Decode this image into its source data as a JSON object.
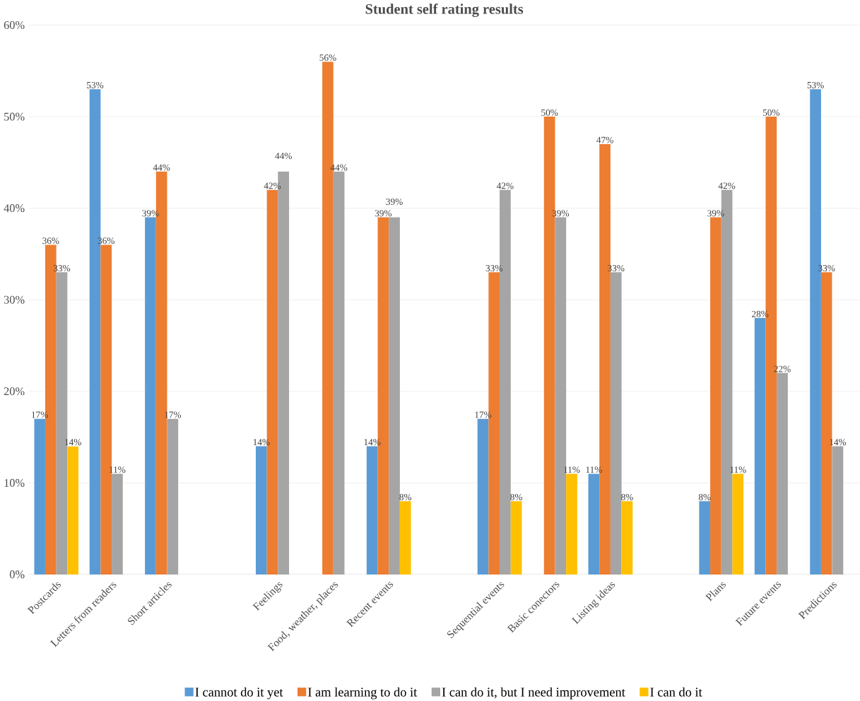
{
  "chart_data": {
    "type": "bar",
    "title": "Student self rating results",
    "categories": [
      "Postcards",
      "Letters from readers",
      "Short articles",
      null,
      "Feelings",
      "Food, weather, places",
      "Recent events",
      null,
      "Sequential events",
      "Basic conectors",
      "Listing ideas",
      null,
      "Plans",
      "Future events",
      "Predictions"
    ],
    "series": [
      {
        "name": "I cannot do it yet",
        "color": "#5b9bd5",
        "values": [
          17,
          53,
          39,
          null,
          14,
          null,
          14,
          null,
          17,
          null,
          11,
          null,
          8,
          28,
          53
        ],
        "value_labels": [
          "17%",
          "53%",
          "39%",
          null,
          "14%",
          null,
          "14%",
          null,
          "17%",
          null,
          "11%",
          null,
          "8%",
          "28%",
          "53%"
        ]
      },
      {
        "name": "I am learning to do it",
        "color": "#ed7d31",
        "values": [
          36,
          36,
          44,
          null,
          42,
          56,
          39,
          null,
          33,
          50,
          47,
          null,
          39,
          50,
          33
        ],
        "value_labels": [
          "36%",
          "36%",
          "44%",
          null,
          "42%",
          "56%",
          "39%",
          null,
          "33%",
          "50%",
          "47%",
          null,
          "39%",
          "50%",
          "33%"
        ]
      },
      {
        "name": "I can do it, but I need  improvement",
        "color": "#a5a5a5",
        "values": [
          33,
          11,
          17,
          null,
          44,
          44,
          39,
          null,
          42,
          39,
          33,
          null,
          42,
          22,
          14
        ],
        "value_labels": [
          "33%",
          "11%",
          "17%",
          null,
          "44%",
          "44%",
          "39%",
          null,
          "42%",
          "39%",
          "33%",
          null,
          "42%",
          "22%",
          "14%"
        ]
      },
      {
        "name": "I can do it",
        "color": "#ffc000",
        "values": [
          14,
          null,
          null,
          null,
          null,
          null,
          8,
          null,
          8,
          11,
          8,
          null,
          11,
          null,
          null
        ],
        "value_labels": [
          "14%",
          null,
          null,
          null,
          null,
          null,
          "8%",
          null,
          "8%",
          "11%",
          "8%",
          null,
          "11%",
          null,
          null
        ]
      }
    ],
    "ylim": [
      0,
      60
    ],
    "yticks": [
      {
        "value": 0,
        "label": "0%"
      },
      {
        "value": 10,
        "label": "10%"
      },
      {
        "value": 20,
        "label": "20%"
      },
      {
        "value": 30,
        "label": "30%"
      },
      {
        "value": 40,
        "label": "40%"
      },
      {
        "value": 50,
        "label": "50%"
      },
      {
        "value": 60,
        "label": "60%"
      }
    ],
    "grid": "y",
    "legend": "bottom"
  }
}
